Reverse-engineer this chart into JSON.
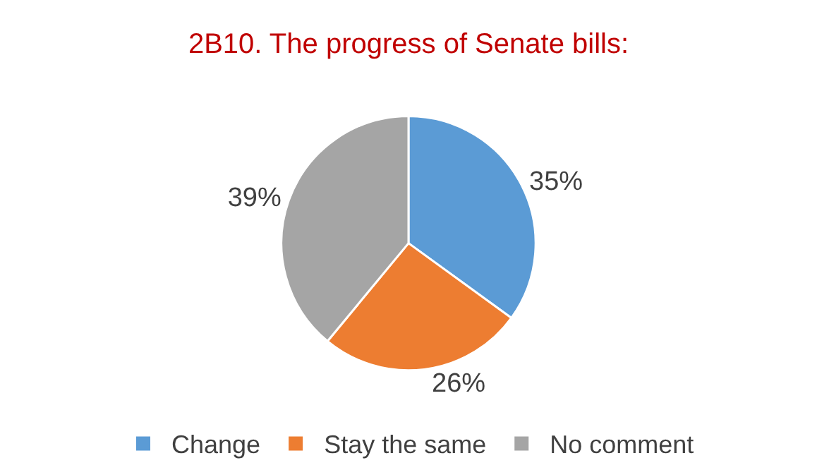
{
  "chart_data": {
    "type": "pie",
    "title": "2B10. The progress of Senate bills:",
    "categories": [
      "Change",
      "Stay the same",
      "No comment"
    ],
    "values": [
      35,
      26,
      39
    ],
    "colors": [
      "#5b9bd5",
      "#ed7d31",
      "#a5a5a5"
    ],
    "value_labels": [
      "35%",
      "26%",
      "39%"
    ],
    "legend": "bottom"
  }
}
